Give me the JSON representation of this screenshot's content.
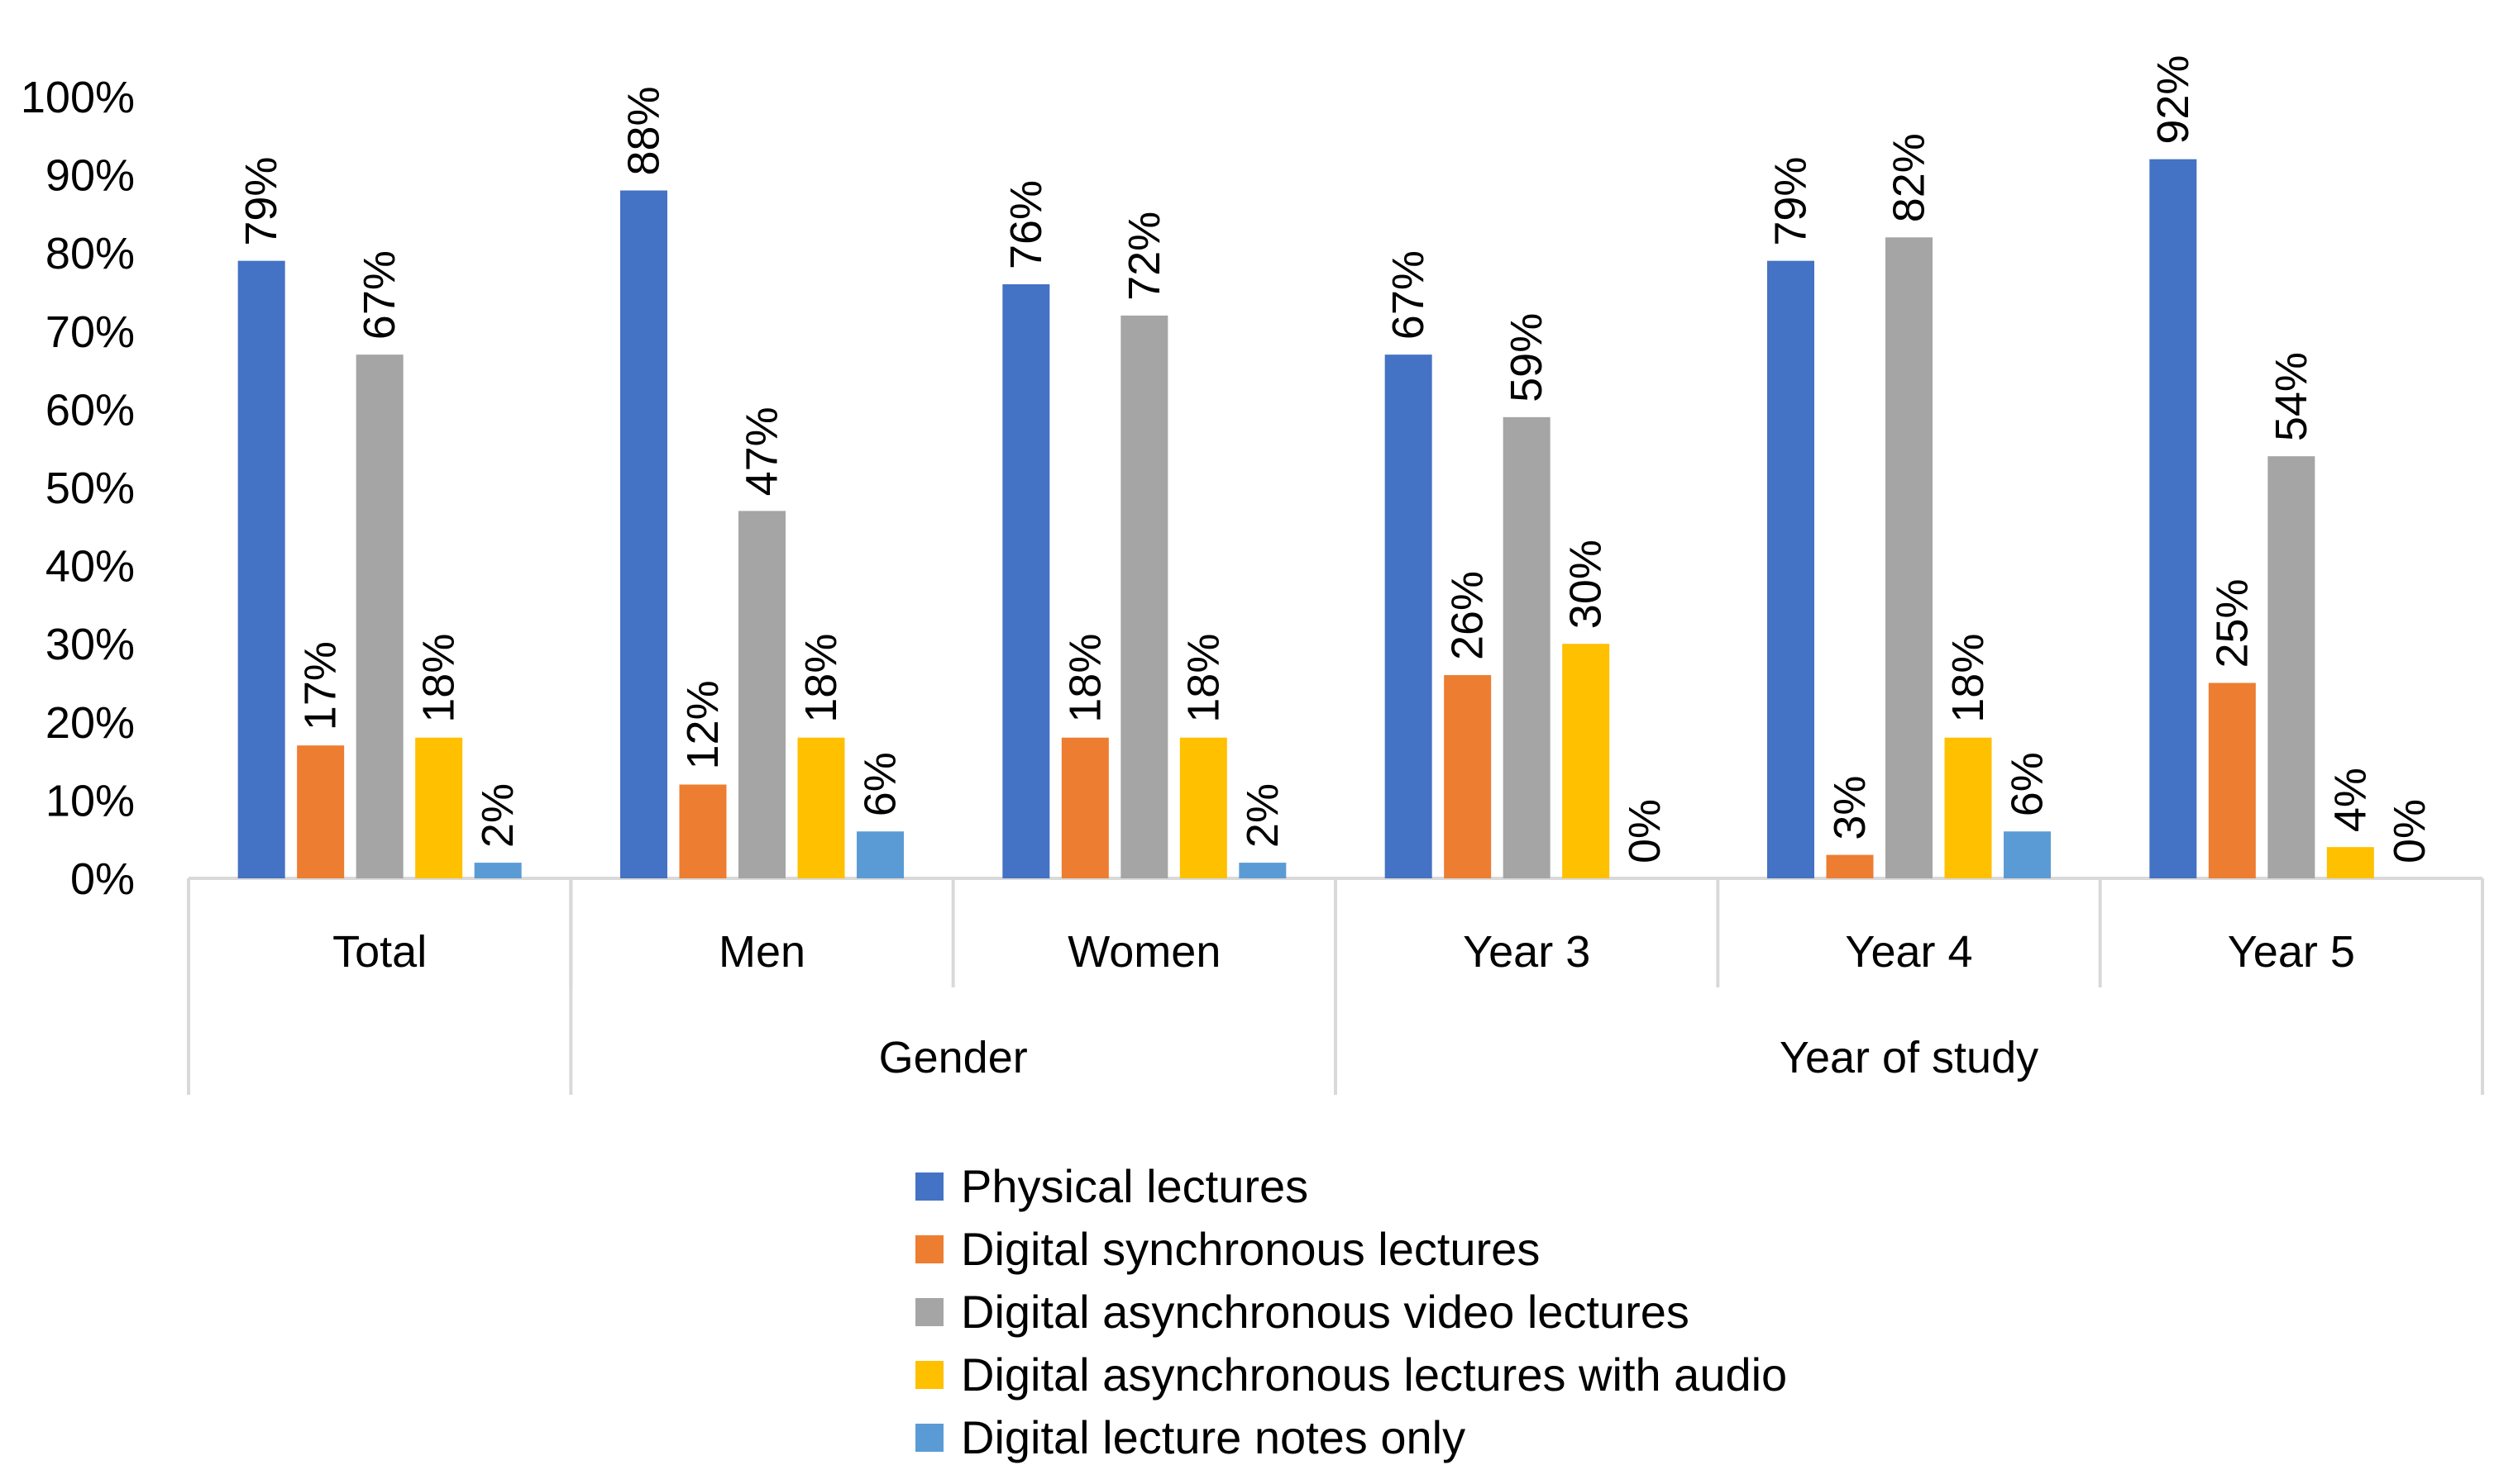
{
  "chart_data": {
    "type": "bar",
    "title": "",
    "xlabel": "",
    "ylabel": "",
    "ylim": [
      0,
      100
    ],
    "yticks": [
      "0%",
      "10%",
      "20%",
      "30%",
      "40%",
      "50%",
      "60%",
      "70%",
      "80%",
      "90%",
      "100%"
    ],
    "categories": [
      "Total",
      "Men",
      "Women",
      "Year 3",
      "Year 4",
      "Year 5"
    ],
    "groups": [
      {
        "label": "",
        "categories": [
          "Total"
        ]
      },
      {
        "label": "Gender",
        "categories": [
          "Men",
          "Women"
        ]
      },
      {
        "label": "Year of study",
        "categories": [
          "Year 3",
          "Year 4",
          "Year 5"
        ]
      }
    ],
    "series": [
      {
        "name": "Physical lectures",
        "color": "#4472C4",
        "values": [
          79,
          88,
          76,
          67,
          79,
          92
        ],
        "labels": [
          "79%",
          "88%",
          "76%",
          "67%",
          "79%",
          "92%"
        ]
      },
      {
        "name": "Digital synchronous lectures",
        "color": "#ED7D31",
        "values": [
          17,
          12,
          18,
          26,
          3,
          25
        ],
        "labels": [
          "17%",
          "12%",
          "18%",
          "26%",
          "3%",
          "25%"
        ]
      },
      {
        "name": "Digital asynchronous video lectures",
        "color": "#A5A5A5",
        "values": [
          67,
          47,
          72,
          59,
          82,
          54
        ],
        "labels": [
          "67%",
          "47%",
          "72%",
          "59%",
          "82%",
          "54%"
        ]
      },
      {
        "name": "Digital asynchronous lectures with audio",
        "color": "#FFC000",
        "values": [
          18,
          18,
          18,
          30,
          18,
          4
        ],
        "labels": [
          "18%",
          "18%",
          "18%",
          "30%",
          "18%",
          "4%"
        ]
      },
      {
        "name": "Digital lecture notes only",
        "color": "#5B9BD5",
        "values": [
          2,
          6,
          2,
          0,
          6,
          0
        ],
        "labels": [
          "2%",
          "6%",
          "2%",
          "0%",
          "6%",
          "0%"
        ]
      }
    ],
    "legend_position": "bottom",
    "gridlines": false
  }
}
